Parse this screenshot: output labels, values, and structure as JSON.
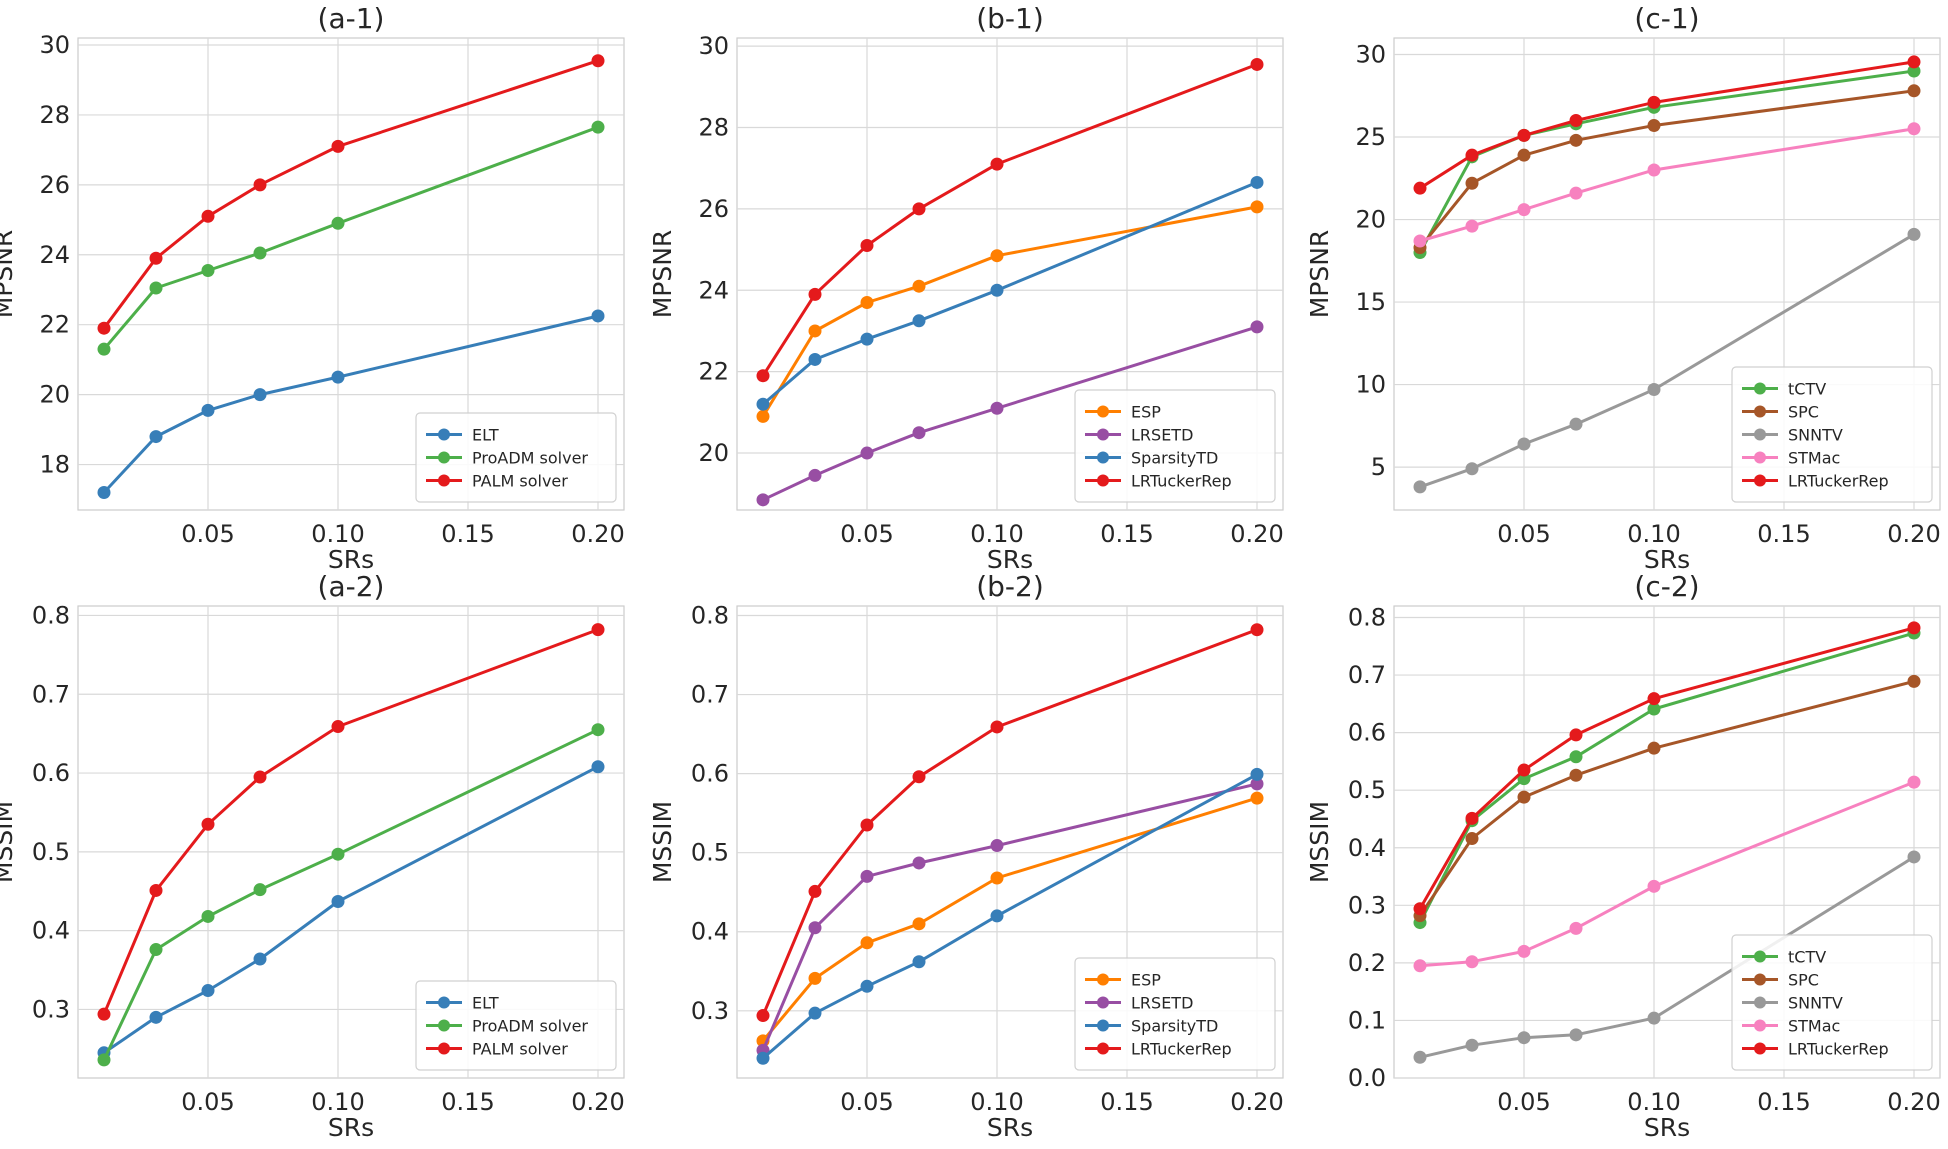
{
  "chart_data": [
    {
      "type": "line",
      "title": "(a-1)",
      "xlabel": "SRs",
      "ylabel": "MPSNR",
      "x": [
        0.01,
        0.03,
        0.05,
        0.07,
        0.1,
        0.2
      ],
      "xlim": [
        0.0,
        0.21
      ],
      "ylim": [
        16.7,
        30.2
      ],
      "xticks": [
        0.05,
        0.1,
        0.15,
        0.2
      ],
      "xtick_labels": [
        "0.05",
        "0.10",
        "0.15",
        "0.20"
      ],
      "yticks": [
        18,
        20,
        22,
        24,
        26,
        28,
        30
      ],
      "ytick_labels": [
        "18",
        "20",
        "22",
        "24",
        "26",
        "28",
        "30"
      ],
      "legend_position": "lower-right",
      "grid": true,
      "series": [
        {
          "name": "ELT",
          "color": "#377eb8",
          "values": [
            17.2,
            18.8,
            19.55,
            20.0,
            20.5,
            22.25
          ]
        },
        {
          "name": "ProADM solver",
          "color": "#4daf4a",
          "values": [
            21.3,
            23.05,
            23.55,
            24.05,
            24.9,
            27.65
          ]
        },
        {
          "name": "PALM solver",
          "color": "#e41a1c",
          "values": [
            21.9,
            23.9,
            25.1,
            26.0,
            27.1,
            29.55
          ]
        }
      ]
    },
    {
      "type": "line",
      "title": "(b-1)",
      "xlabel": "SRs",
      "ylabel": "MPSNR",
      "x": [
        0.01,
        0.03,
        0.05,
        0.07,
        0.1,
        0.2
      ],
      "xlim": [
        0.0,
        0.21
      ],
      "ylim": [
        18.6,
        30.2
      ],
      "xticks": [
        0.05,
        0.1,
        0.15,
        0.2
      ],
      "xtick_labels": [
        "0.05",
        "0.10",
        "0.15",
        "0.20"
      ],
      "yticks": [
        20,
        22,
        24,
        26,
        28,
        30
      ],
      "ytick_labels": [
        "20",
        "22",
        "24",
        "26",
        "28",
        "30"
      ],
      "legend_position": "lower-right",
      "grid": true,
      "series": [
        {
          "name": "ESP",
          "color": "#ff7f00",
          "values": [
            20.9,
            23.0,
            23.7,
            24.1,
            24.85,
            26.05
          ]
        },
        {
          "name": "LRSETD",
          "color": "#984ea3",
          "values": [
            18.85,
            19.45,
            20.0,
            20.5,
            21.1,
            23.1
          ]
        },
        {
          "name": "SparsityTD",
          "color": "#377eb8",
          "values": [
            21.2,
            22.3,
            22.8,
            23.25,
            24.0,
            26.65
          ]
        },
        {
          "name": "LRTuckerRep",
          "color": "#e41a1c",
          "values": [
            21.9,
            23.9,
            25.1,
            26.0,
            27.1,
            29.55
          ]
        }
      ]
    },
    {
      "type": "line",
      "title": "(c-1)",
      "xlabel": "SRs",
      "ylabel": "MPSNR",
      "x": [
        0.01,
        0.03,
        0.05,
        0.07,
        0.1,
        0.2
      ],
      "xlim": [
        0.0,
        0.21
      ],
      "ylim": [
        2.4,
        31.0
      ],
      "xticks": [
        0.05,
        0.1,
        0.15,
        0.2
      ],
      "xtick_labels": [
        "0.05",
        "0.10",
        "0.15",
        "0.20"
      ],
      "yticks": [
        5,
        10,
        15,
        20,
        25,
        30
      ],
      "ytick_labels": [
        "5",
        "10",
        "15",
        "20",
        "25",
        "30"
      ],
      "legend_position": "lower-right",
      "grid": true,
      "series": [
        {
          "name": "tCTV",
          "color": "#4daf4a",
          "values": [
            18.0,
            23.8,
            25.1,
            25.8,
            26.8,
            29.0
          ]
        },
        {
          "name": "SPC",
          "color": "#a65628",
          "values": [
            18.3,
            22.2,
            23.9,
            24.8,
            25.7,
            27.8
          ]
        },
        {
          "name": "SNNTV",
          "color": "#999999",
          "values": [
            3.8,
            4.9,
            6.4,
            7.6,
            9.7,
            19.1
          ]
        },
        {
          "name": "STMac",
          "color": "#f781bf",
          "values": [
            18.7,
            19.6,
            20.6,
            21.6,
            23.0,
            25.5
          ]
        },
        {
          "name": "LRTuckerRep",
          "color": "#e41a1c",
          "values": [
            21.9,
            23.9,
            25.1,
            26.0,
            27.1,
            29.55
          ]
        }
      ]
    },
    {
      "type": "line",
      "title": "(a-2)",
      "xlabel": "SRs",
      "ylabel": "MSSIM",
      "x": [
        0.01,
        0.03,
        0.05,
        0.07,
        0.1,
        0.2
      ],
      "xlim": [
        0.0,
        0.21
      ],
      "ylim": [
        0.213,
        0.812
      ],
      "xticks": [
        0.05,
        0.1,
        0.15,
        0.2
      ],
      "xtick_labels": [
        "0.05",
        "0.10",
        "0.15",
        "0.20"
      ],
      "yticks": [
        0.3,
        0.4,
        0.5,
        0.6,
        0.7,
        0.8
      ],
      "ytick_labels": [
        "0.3",
        "0.4",
        "0.5",
        "0.6",
        "0.7",
        "0.8"
      ],
      "legend_position": "lower-right",
      "grid": true,
      "series": [
        {
          "name": "ELT",
          "color": "#377eb8",
          "values": [
            0.245,
            0.29,
            0.324,
            0.364,
            0.437,
            0.608
          ]
        },
        {
          "name": "ProADM solver",
          "color": "#4daf4a",
          "values": [
            0.236,
            0.376,
            0.418,
            0.452,
            0.497,
            0.655
          ]
        },
        {
          "name": "PALM solver",
          "color": "#e41a1c",
          "values": [
            0.294,
            0.451,
            0.535,
            0.595,
            0.659,
            0.782
          ]
        }
      ]
    },
    {
      "type": "line",
      "title": "(b-2)",
      "xlabel": "SRs",
      "ylabel": "MSSIM",
      "x": [
        0.01,
        0.03,
        0.05,
        0.07,
        0.1,
        0.2
      ],
      "xlim": [
        0.0,
        0.21
      ],
      "ylim": [
        0.215,
        0.812
      ],
      "xticks": [
        0.05,
        0.1,
        0.15,
        0.2
      ],
      "xtick_labels": [
        "0.05",
        "0.10",
        "0.15",
        "0.20"
      ],
      "yticks": [
        0.3,
        0.4,
        0.5,
        0.6,
        0.7,
        0.8
      ],
      "ytick_labels": [
        "0.3",
        "0.4",
        "0.5",
        "0.6",
        "0.7",
        "0.8"
      ],
      "legend_position": "lower-right",
      "grid": true,
      "series": [
        {
          "name": "ESP",
          "color": "#ff7f00",
          "values": [
            0.262,
            0.341,
            0.386,
            0.41,
            0.468,
            0.569
          ]
        },
        {
          "name": "LRSETD",
          "color": "#984ea3",
          "values": [
            0.25,
            0.405,
            0.47,
            0.487,
            0.509,
            0.587
          ]
        },
        {
          "name": "SparsityTD",
          "color": "#377eb8",
          "values": [
            0.24,
            0.297,
            0.331,
            0.362,
            0.42,
            0.599
          ]
        },
        {
          "name": "LRTuckerRep",
          "color": "#e41a1c",
          "values": [
            0.294,
            0.451,
            0.535,
            0.596,
            0.659,
            0.782
          ]
        }
      ]
    },
    {
      "type": "line",
      "title": "(c-2)",
      "xlabel": "SRs",
      "ylabel": "MSSIM",
      "x": [
        0.01,
        0.03,
        0.05,
        0.07,
        0.1,
        0.2
      ],
      "xlim": [
        0.0,
        0.21
      ],
      "ylim": [
        0.0,
        0.82
      ],
      "xticks": [
        0.05,
        0.1,
        0.15,
        0.2
      ],
      "xtick_labels": [
        "0.05",
        "0.10",
        "0.15",
        "0.20"
      ],
      "yticks": [
        0.0,
        0.1,
        0.2,
        0.3,
        0.4,
        0.5,
        0.6,
        0.7,
        0.8
      ],
      "ytick_labels": [
        "0.0",
        "0.1",
        "0.2",
        "0.3",
        "0.4",
        "0.5",
        "0.6",
        "0.7",
        "0.8"
      ],
      "legend_position": "lower-right",
      "grid": true,
      "series": [
        {
          "name": "tCTV",
          "color": "#4daf4a",
          "values": [
            0.27,
            0.447,
            0.52,
            0.558,
            0.641,
            0.773
          ]
        },
        {
          "name": "SPC",
          "color": "#a65628",
          "values": [
            0.282,
            0.416,
            0.488,
            0.526,
            0.573,
            0.689
          ]
        },
        {
          "name": "SNNTV",
          "color": "#999999",
          "values": [
            0.036,
            0.057,
            0.07,
            0.075,
            0.104,
            0.384
          ]
        },
        {
          "name": "STMac",
          "color": "#f781bf",
          "values": [
            0.195,
            0.202,
            0.22,
            0.26,
            0.333,
            0.514
          ]
        },
        {
          "name": "LRTuckerRep",
          "color": "#e41a1c",
          "values": [
            0.294,
            0.451,
            0.535,
            0.596,
            0.659,
            0.782
          ]
        }
      ]
    }
  ]
}
